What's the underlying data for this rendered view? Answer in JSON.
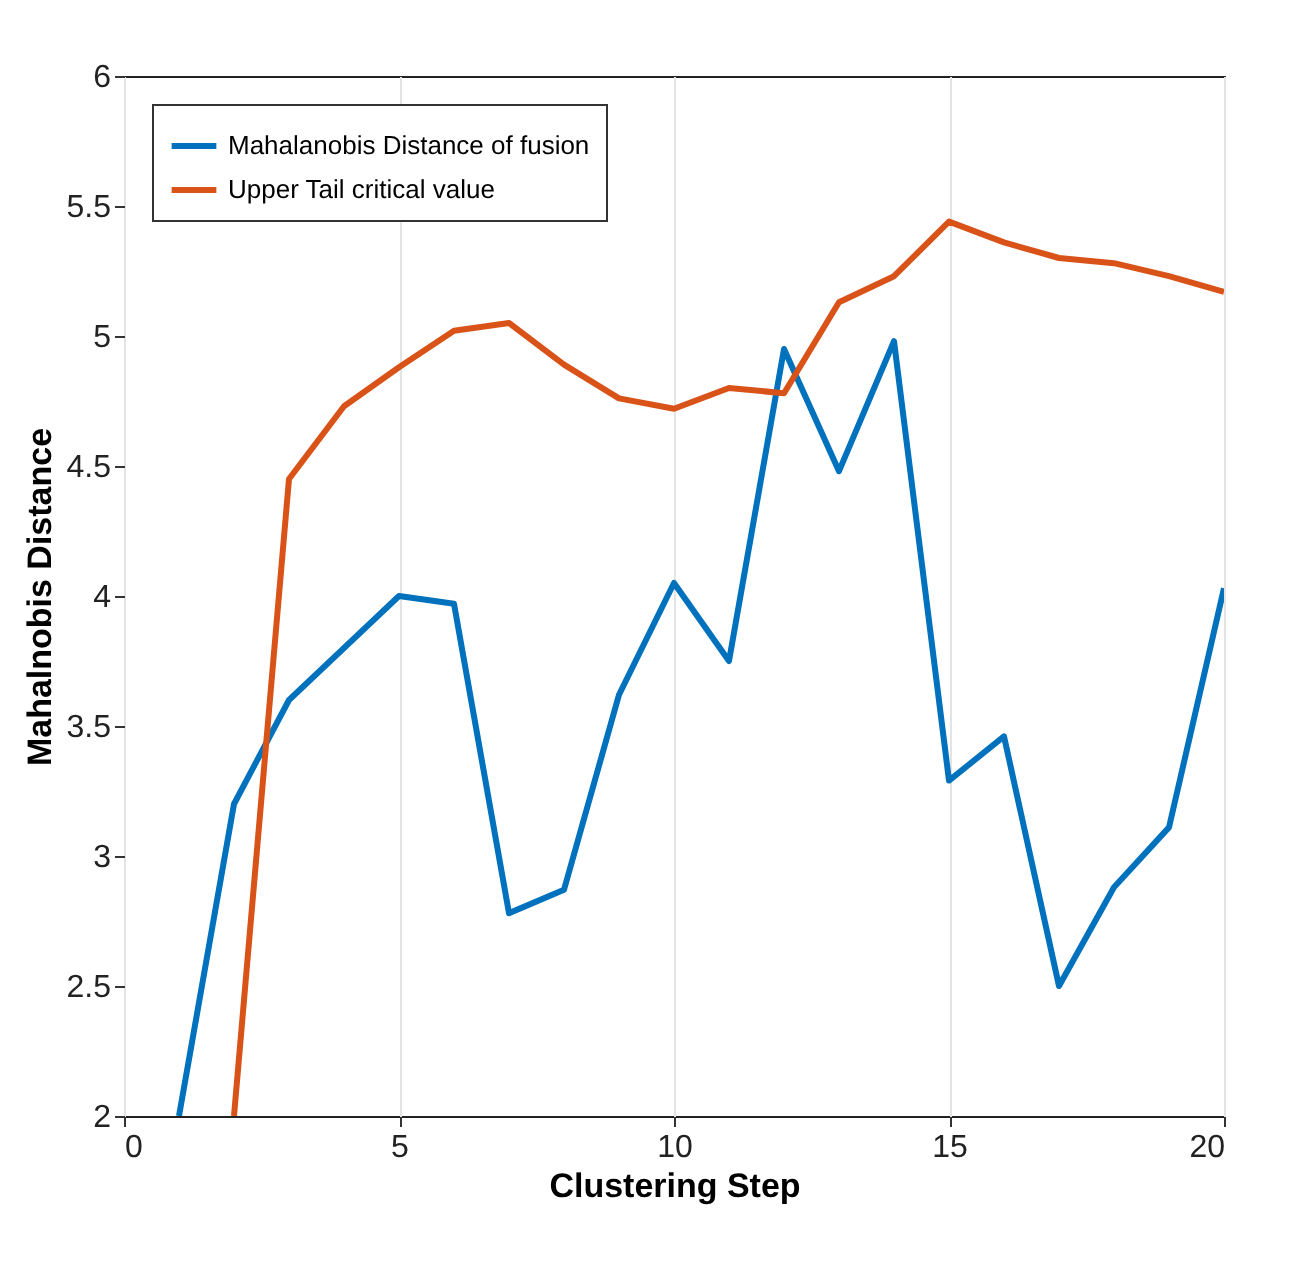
{
  "chart_data": {
    "type": "line",
    "xlabel": "Clustering Step",
    "ylabel": "Mahalnobis Distance",
    "x": [
      1,
      2,
      3,
      4,
      5,
      6,
      7,
      8,
      9,
      10,
      11,
      12,
      13,
      14,
      15,
      16,
      17,
      18,
      19,
      20
    ],
    "series": [
      {
        "name": "Mahalanobis Distance of fusion",
        "color": "#0072bd",
        "values": [
          2,
          3.2,
          3.6,
          3.8,
          4.0,
          3.97,
          2.78,
          2.87,
          3.62,
          4.05,
          3.75,
          4.95,
          4.48,
          4.98,
          3.29,
          3.46,
          2.5,
          2.88,
          3.11,
          4.03
        ]
      },
      {
        "name": "Upper Tail critical value",
        "color": "#d95319",
        "x": [
          2,
          3,
          4,
          5,
          6,
          7,
          8,
          9,
          10,
          11,
          12,
          13,
          14,
          15,
          16,
          17,
          18,
          19,
          20
        ],
        "values": [
          2,
          4.45,
          4.73,
          4.88,
          5.02,
          5.05,
          4.89,
          4.76,
          4.72,
          4.8,
          4.78,
          5.13,
          5.23,
          5.44,
          5.36,
          5.3,
          5.28,
          5.23,
          5.17
        ]
      }
    ],
    "xlim": [
      0,
      20
    ],
    "xticks": [
      0,
      5,
      10,
      15,
      20
    ],
    "ylim": [
      2,
      6
    ],
    "yticks": [
      2,
      2.5,
      3,
      3.5,
      4,
      4.5,
      5,
      5.5,
      6
    ],
    "grid": "x",
    "legend": "top left",
    "marker": "none",
    "line_style": "solid"
  }
}
